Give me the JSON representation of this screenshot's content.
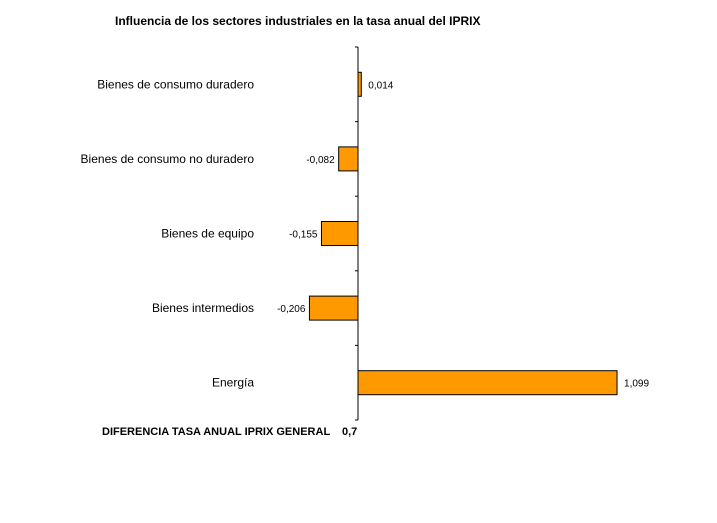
{
  "chart_data": {
    "type": "bar",
    "orientation": "horizontal",
    "title": "Influencia de los sectores industriales en la tasa anual del IPRIX",
    "categories": [
      "Bienes de consumo duradero",
      "Bienes de consumo no duradero",
      "Bienes de equipo",
      "Bienes intermedios",
      "Energía"
    ],
    "values": [
      0.014,
      -0.082,
      -0.155,
      -0.206,
      1.099
    ],
    "value_labels": [
      "0,014",
      "-0,082",
      "-0,155",
      "-0,206",
      "1,099"
    ],
    "xlim": [
      -0.42,
      1.1
    ],
    "grid": false,
    "bar_color": "#FF9900",
    "bar_edge_color": "#000000"
  },
  "footer": {
    "label": "DIFERENCIA TASA ANUAL IPRIX GENERAL",
    "value": "0,7"
  }
}
